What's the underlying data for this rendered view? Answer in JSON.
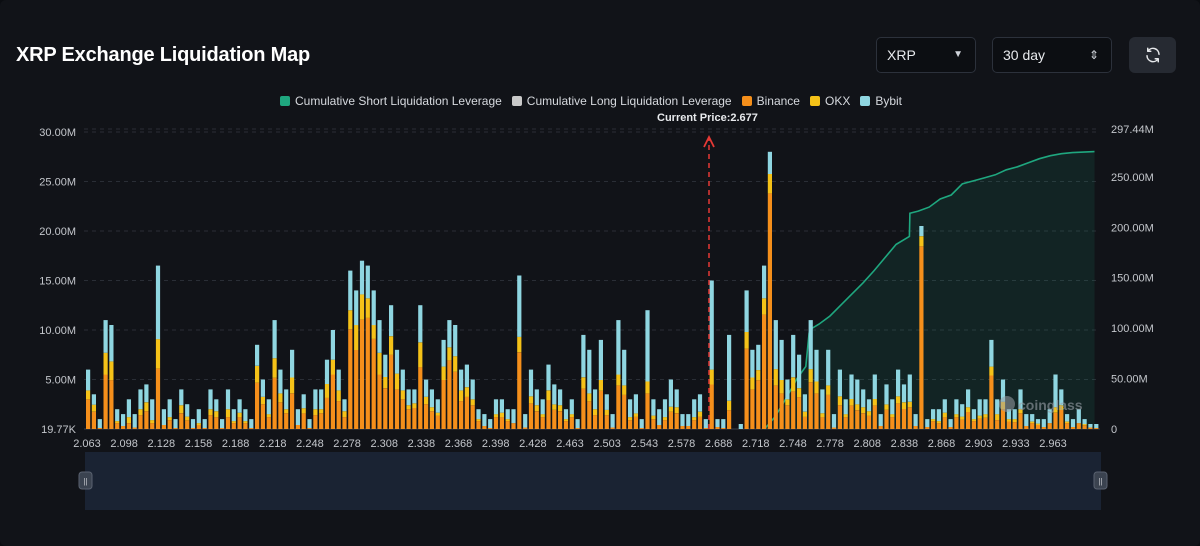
{
  "header": {
    "title": "XRP Exchange Liquidation Map",
    "symbol_select": "XRP",
    "range_select": "30 day"
  },
  "legend": [
    {
      "label": "Cumulative Short Liquidation Leverage",
      "color": "#1fa77f"
    },
    {
      "label": "Cumulative Long Liquidation Leverage",
      "color": "#c9c9c9"
    },
    {
      "label": "Binance",
      "color": "#f58f1b"
    },
    {
      "label": "OKX",
      "color": "#f5c218"
    },
    {
      "label": "Bybit",
      "color": "#8fd6e1"
    }
  ],
  "watermark": "coinglass",
  "chart_data": {
    "type": "bar",
    "title": "XRP Exchange Liquidation Map",
    "current_price_label": "Current Price:2.677",
    "current_price": 2.677,
    "x_tick_labels": [
      "2.063",
      "2.098",
      "2.128",
      "2.158",
      "2.188",
      "2.218",
      "2.248",
      "2.278",
      "2.308",
      "2.338",
      "2.368",
      "2.398",
      "2.428",
      "2.463",
      "2.503",
      "2.543",
      "2.578",
      "2.688",
      "2.718",
      "2.748",
      "2.778",
      "2.808",
      "2.838",
      "2.868",
      "2.903",
      "2.933",
      "2.963"
    ],
    "left_axis_labels": [
      "19.77K",
      "5.00M",
      "10.00M",
      "15.00M",
      "20.00M",
      "25.00M",
      "30.00M"
    ],
    "left_axis_values": [
      0,
      5,
      10,
      15,
      20,
      25,
      30
    ],
    "left_ylim": [
      0,
      30.3
    ],
    "right_axis_labels": [
      "0",
      "50.00M",
      "100.00M",
      "150.00M",
      "200.00M",
      "250.00M",
      "297.44M"
    ],
    "right_axis_values": [
      0,
      50,
      100,
      150,
      200,
      250,
      297.44
    ],
    "right_ylim": [
      0,
      297.44
    ],
    "value_unit": "M",
    "grid": true,
    "legend_position": "top",
    "series_names": [
      "Binance",
      "OKX",
      "Bybit"
    ],
    "bars_total": [
      6,
      3.5,
      1,
      11,
      10.5,
      2,
      1.5,
      3,
      1.5,
      4,
      4.5,
      3,
      16.5,
      2,
      3,
      1,
      4,
      2.5,
      1,
      2,
      1,
      4,
      3,
      1,
      4,
      2,
      3,
      2,
      1,
      8.5,
      5,
      3,
      11,
      6,
      4,
      8,
      2,
      3.5,
      1,
      4,
      4,
      7,
      10,
      6,
      3,
      16,
      14,
      17,
      16.5,
      14,
      11,
      7.5,
      12.5,
      8,
      6,
      4,
      4,
      12.5,
      5,
      4,
      3,
      9,
      11,
      10.5,
      6,
      6.5,
      5,
      2,
      1.5,
      1,
      3,
      3,
      2,
      2,
      15.5,
      1.5,
      6,
      4,
      3,
      6.5,
      4.5,
      4,
      2,
      3,
      1,
      9.5,
      8,
      4,
      9,
      3.5,
      1.5,
      11,
      8,
      3,
      3.5,
      1,
      12,
      3,
      2,
      3,
      5,
      4,
      1.5,
      1.5,
      3,
      3.5,
      1,
      15,
      1,
      1,
      9.5,
      0,
      0.5,
      14,
      8,
      8.5,
      16.5,
      28,
      11,
      9,
      5,
      9.5,
      7.5,
      3.5,
      11,
      8,
      4,
      8,
      1.5,
      6,
      3,
      5.5,
      5,
      4,
      3,
      5.5,
      1.5,
      4.5,
      3,
      6,
      4.5,
      5.5,
      1.5,
      20.5,
      1,
      2,
      2,
      3,
      1,
      3,
      2.5,
      4,
      2,
      3,
      3,
      9,
      3,
      5,
      2,
      2,
      4,
      1.5,
      1.5,
      1,
      1,
      2,
      5.5,
      4,
      1.5,
      1,
      2,
      1,
      0.5,
      0.5
    ],
    "bars_okx_share": [
      0.15,
      0.2,
      0,
      0.2,
      0.18,
      0.1,
      0,
      0.2,
      0,
      0.15,
      0.2,
      0.1,
      0.18,
      0,
      0.1,
      0,
      0.2,
      0.15,
      0,
      0.1,
      0,
      0.15,
      0.2,
      0,
      0.2,
      0.1,
      0.15,
      0.1,
      0,
      0.2,
      0.15,
      0.1,
      0.18,
      0.15,
      0.1,
      0.2,
      0,
      0.15,
      0,
      0.15,
      0.1,
      0.2,
      0.15,
      0.18,
      0.2,
      0.12,
      0.18,
      0.15,
      0.12,
      0.1,
      0.2,
      0.15,
      0.15,
      0.2,
      0.15,
      0.1,
      0.12,
      0.2,
      0.15,
      0.1,
      0.1,
      0.15,
      0.12,
      0.15,
      0.18,
      0.15,
      0.12,
      0.1,
      0,
      0,
      0.1,
      0.15,
      0.1,
      0,
      0.1,
      0,
      0.12,
      0.15,
      0.1,
      0.15,
      0.12,
      0.15,
      0.1,
      0.1,
      0,
      0.12,
      0.1,
      0.15,
      0.12,
      0.15,
      0,
      0.1,
      0.12,
      0.1,
      0.1,
      0,
      0.1,
      0.12,
      0,
      0.1,
      0.1,
      0.15,
      0,
      0,
      0.1,
      0.15,
      0,
      0.1,
      0,
      0,
      0.1,
      0,
      0,
      0.12,
      0.15,
      0.12,
      0.1,
      0.07,
      0.15,
      0.15,
      0.12,
      0.15,
      0.12,
      0.15,
      0.12,
      0.15,
      0.1,
      0.12,
      0,
      0.15,
      0.1,
      0.12,
      0.12,
      0.15,
      0.15,
      0.12,
      0,
      0.12,
      0.1,
      0.12,
      0.15,
      0.1,
      0,
      0.05,
      0,
      0.1,
      0.1,
      0.15,
      0,
      0.1,
      0.12,
      0.12,
      0.1,
      0.1,
      0.12,
      0.1,
      0.2,
      0.15,
      0.12,
      0.15,
      0.1,
      0,
      0.1,
      0.15,
      0,
      0,
      0.1,
      0.12,
      0.1,
      0,
      0,
      0.12,
      0,
      0,
      0
    ],
    "bars_bybit_share": [
      0.35,
      0.3,
      0.9,
      0.3,
      0.35,
      0.6,
      0.8,
      0.6,
      0.9,
      0.5,
      0.4,
      0.7,
      0.45,
      0.8,
      0.6,
      0.9,
      0.4,
      0.5,
      0.9,
      0.7,
      0.9,
      0.5,
      0.4,
      0.9,
      0.5,
      0.6,
      0.45,
      0.6,
      0.9,
      0.25,
      0.35,
      0.5,
      0.35,
      0.4,
      0.5,
      0.35,
      0.8,
      0.4,
      0.9,
      0.5,
      0.5,
      0.35,
      0.3,
      0.35,
      0.4,
      0.25,
      0.25,
      0.2,
      0.2,
      0.25,
      0.3,
      0.3,
      0.25,
      0.3,
      0.35,
      0.4,
      0.35,
      0.3,
      0.35,
      0.45,
      0.45,
      0.3,
      0.25,
      0.3,
      0.35,
      0.35,
      0.4,
      0.5,
      0.8,
      0.9,
      0.5,
      0.45,
      0.5,
      0.7,
      0.4,
      0.9,
      0.45,
      0.4,
      0.5,
      0.4,
      0.45,
      0.4,
      0.5,
      0.5,
      0.9,
      0.45,
      0.55,
      0.5,
      0.45,
      0.45,
      0.9,
      0.5,
      0.45,
      0.6,
      0.55,
      0.9,
      0.6,
      0.55,
      0.8,
      0.6,
      0.55,
      0.45,
      0.8,
      0.8,
      0.6,
      0.5,
      0.9,
      0.6,
      0.8,
      0.9,
      0.7,
      0,
      1,
      0.3,
      0.35,
      0.3,
      0.2,
      0.08,
      0.45,
      0.45,
      0.4,
      0.45,
      0.45,
      0.5,
      0.45,
      0.4,
      0.6,
      0.45,
      0.9,
      0.45,
      0.5,
      0.45,
      0.5,
      0.45,
      0.4,
      0.45,
      0.8,
      0.45,
      0.5,
      0.45,
      0.4,
      0.5,
      0.8,
      0.05,
      0.8,
      0.5,
      0.6,
      0.45,
      0.8,
      0.5,
      0.5,
      0.45,
      0.5,
      0.55,
      0.5,
      0.3,
      0.5,
      0.45,
      0.5,
      0.5,
      0.5,
      0.8,
      0.5,
      0.45,
      0.8,
      0.7,
      0.6,
      0.4,
      0.5,
      0.8,
      0.7,
      0.5,
      0.7,
      0.8,
      0.3
    ],
    "cumulative_short_points": [
      [
        2.6805,
        0
      ],
      [
        2.69,
        12
      ],
      [
        2.7,
        30
      ],
      [
        2.71,
        50
      ],
      [
        2.718,
        62
      ],
      [
        2.721,
        95
      ],
      [
        2.724,
        100
      ],
      [
        2.73,
        104
      ],
      [
        2.74,
        112
      ],
      [
        2.75,
        123
      ],
      [
        2.76,
        134
      ],
      [
        2.77,
        145
      ],
      [
        2.78,
        157
      ],
      [
        2.79,
        170
      ],
      [
        2.8,
        183
      ],
      [
        2.812,
        191
      ],
      [
        2.8125,
        214
      ],
      [
        2.82,
        216
      ],
      [
        2.83,
        220
      ],
      [
        2.84,
        228
      ],
      [
        2.85,
        232
      ],
      [
        2.86,
        243
      ],
      [
        2.87,
        246
      ],
      [
        2.88,
        249
      ],
      [
        2.89,
        252
      ],
      [
        2.9,
        257
      ],
      [
        2.91,
        260
      ],
      [
        2.92,
        264
      ],
      [
        2.93,
        268
      ],
      [
        2.94,
        271
      ],
      [
        2.95,
        273
      ],
      [
        2.96,
        274
      ],
      [
        2.98,
        275
      ]
    ]
  }
}
